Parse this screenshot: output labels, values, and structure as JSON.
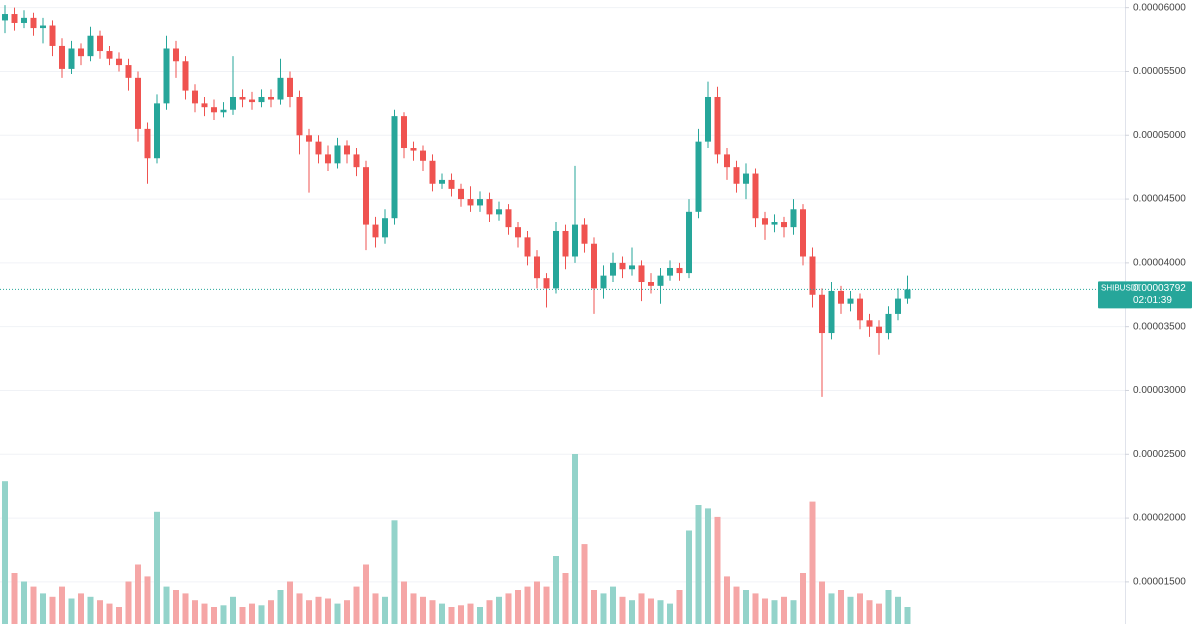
{
  "chart_data": {
    "type": "candlestick",
    "open": [
      5.9e-05,
      5.95e-05,
      5.88e-05,
      5.92e-05,
      5.84e-05,
      5.86e-05,
      5.7e-05,
      5.52e-05,
      5.68e-05,
      5.62e-05,
      5.78e-05,
      5.66e-05,
      5.6e-05,
      5.55e-05,
      5.45e-05,
      5.05e-05,
      4.82e-05,
      5.25e-05,
      5.68e-05,
      5.58e-05,
      5.35e-05,
      5.25e-05,
      5.22e-05,
      5.18e-05,
      5.2e-05,
      5.3e-05,
      5.28e-05,
      5.26e-05,
      5.3e-05,
      5.28e-05,
      5.45e-05,
      5.3e-05,
      5e-05,
      4.95e-05,
      4.85e-05,
      4.78e-05,
      4.92e-05,
      4.85e-05,
      4.75e-05,
      4.3e-05,
      4.2e-05,
      4.35e-05,
      5.15e-05,
      4.9e-05,
      4.88e-05,
      4.8e-05,
      4.62e-05,
      4.65e-05,
      4.58e-05,
      4.5e-05,
      4.45e-05,
      4.5e-05,
      4.38e-05,
      4.42e-05,
      4.28e-05,
      4.2e-05,
      4.05e-05,
      3.88e-05,
      3.8e-05,
      4.25e-05,
      4.05e-05,
      4.3e-05,
      4.15e-05,
      3.8e-05,
      3.9e-05,
      4e-05,
      3.95e-05,
      3.98e-05,
      3.85e-05,
      3.82e-05,
      3.9e-05,
      3.96e-05,
      3.92e-05,
      4.4e-05,
      4.95e-05,
      5.3e-05,
      4.85e-05,
      4.75e-05,
      4.62e-05,
      4.7e-05,
      4.35e-05,
      4.3e-05,
      4.32e-05,
      4.28e-05,
      4.42e-05,
      4.05e-05,
      3.75e-05,
      3.45e-05,
      3.78e-05,
      3.68e-05,
      3.72e-05,
      3.55e-05,
      3.5e-05,
      3.45e-05,
      3.6e-05,
      3.72e-05
    ],
    "high": [
      6.02e-05,
      6e-05,
      5.98e-05,
      5.96e-05,
      5.92e-05,
      5.9e-05,
      5.76e-05,
      5.74e-05,
      5.72e-05,
      5.85e-05,
      5.82e-05,
      5.7e-05,
      5.65e-05,
      5.6e-05,
      5.5e-05,
      5.1e-05,
      5.32e-05,
      5.78e-05,
      5.74e-05,
      5.62e-05,
      5.4e-05,
      5.3e-05,
      5.28e-05,
      5.26e-05,
      5.62e-05,
      5.36e-05,
      5.34e-05,
      5.36e-05,
      5.36e-05,
      5.6e-05,
      5.5e-05,
      5.35e-05,
      5.05e-05,
      5e-05,
      4.92e-05,
      4.98e-05,
      4.96e-05,
      4.9e-05,
      4.8e-05,
      4.36e-05,
      4.42e-05,
      5.2e-05,
      5.18e-05,
      4.95e-05,
      4.92e-05,
      4.85e-05,
      4.7e-05,
      4.7e-05,
      4.62e-05,
      4.6e-05,
      4.56e-05,
      4.55e-05,
      4.48e-05,
      4.46e-05,
      4.32e-05,
      4.25e-05,
      4.1e-05,
      3.92e-05,
      4.32e-05,
      4.3e-05,
      4.76e-05,
      4.35e-05,
      4.2e-05,
      3.98e-05,
      4.08e-05,
      4.05e-05,
      4.12e-05,
      4.02e-05,
      3.92e-05,
      3.96e-05,
      4.02e-05,
      4e-05,
      4.5e-05,
      5.05e-05,
      5.42e-05,
      5.38e-05,
      4.9e-05,
      4.8e-05,
      4.78e-05,
      4.74e-05,
      4.4e-05,
      4.38e-05,
      4.36e-05,
      4.5e-05,
      4.46e-05,
      4.12e-05,
      3.8e-05,
      3.85e-05,
      3.82e-05,
      3.78e-05,
      3.76e-05,
      3.6e-05,
      3.55e-05,
      3.66e-05,
      3.8e-05,
      3.9e-05
    ],
    "low": [
      5.8e-05,
      5.82e-05,
      5.84e-05,
      5.78e-05,
      5.72e-05,
      5.62e-05,
      5.45e-05,
      5.48e-05,
      5.55e-05,
      5.58e-05,
      5.6e-05,
      5.55e-05,
      5.5e-05,
      5.35e-05,
      4.95e-05,
      4.62e-05,
      4.78e-05,
      5.2e-05,
      5.45e-05,
      5.28e-05,
      5.18e-05,
      5.15e-05,
      5.12e-05,
      5.14e-05,
      5.16e-05,
      5.22e-05,
      5.2e-05,
      5.22e-05,
      5.22e-05,
      5.24e-05,
      5.22e-05,
      4.85e-05,
      4.55e-05,
      4.78e-05,
      4.72e-05,
      4.74e-05,
      4.78e-05,
      4.68e-05,
      4.1e-05,
      4.12e-05,
      4.15e-05,
      4.3e-05,
      4.82e-05,
      4.8e-05,
      4.72e-05,
      4.56e-05,
      4.58e-05,
      4.52e-05,
      4.44e-05,
      4.4e-05,
      4.4e-05,
      4.32e-05,
      4.33e-05,
      4.22e-05,
      4.12e-05,
      3.98e-05,
      3.8e-05,
      3.65e-05,
      3.76e-05,
      3.95e-05,
      4e-05,
      4.08e-05,
      3.6e-05,
      3.72e-05,
      3.85e-05,
      3.88e-05,
      3.9e-05,
      3.7e-05,
      3.76e-05,
      3.68e-05,
      3.86e-05,
      3.86e-05,
      3.88e-05,
      4.35e-05,
      4.9e-05,
      4.78e-05,
      4.65e-05,
      4.55e-05,
      4.5e-05,
      4.28e-05,
      4.18e-05,
      4.24e-05,
      4.2e-05,
      4.22e-05,
      3.98e-05,
      3.65e-05,
      2.95e-05,
      3.4e-05,
      3.6e-05,
      3.62e-05,
      3.48e-05,
      3.42e-05,
      3.28e-05,
      3.4e-05,
      3.55e-05,
      3.68e-05
    ],
    "close": [
      5.95e-05,
      5.88e-05,
      5.92e-05,
      5.84e-05,
      5.86e-05,
      5.7e-05,
      5.52e-05,
      5.68e-05,
      5.62e-05,
      5.78e-05,
      5.66e-05,
      5.6e-05,
      5.55e-05,
      5.45e-05,
      5.05e-05,
      4.82e-05,
      5.25e-05,
      5.68e-05,
      5.58e-05,
      5.35e-05,
      5.25e-05,
      5.22e-05,
      5.18e-05,
      5.2e-05,
      5.3e-05,
      5.28e-05,
      5.26e-05,
      5.3e-05,
      5.28e-05,
      5.45e-05,
      5.3e-05,
      5e-05,
      4.95e-05,
      4.85e-05,
      4.78e-05,
      4.92e-05,
      4.85e-05,
      4.75e-05,
      4.3e-05,
      4.2e-05,
      4.35e-05,
      5.15e-05,
      4.9e-05,
      4.88e-05,
      4.8e-05,
      4.62e-05,
      4.65e-05,
      4.58e-05,
      4.5e-05,
      4.45e-05,
      4.5e-05,
      4.38e-05,
      4.42e-05,
      4.28e-05,
      4.2e-05,
      4.05e-05,
      3.88e-05,
      3.8e-05,
      4.25e-05,
      4.05e-05,
      4.3e-05,
      4.15e-05,
      3.8e-05,
      3.9e-05,
      4e-05,
      3.95e-05,
      3.98e-05,
      3.85e-05,
      3.82e-05,
      3.9e-05,
      3.96e-05,
      3.92e-05,
      4.4e-05,
      4.95e-05,
      5.3e-05,
      4.85e-05,
      4.75e-05,
      4.62e-05,
      4.7e-05,
      4.35e-05,
      4.3e-05,
      4.32e-05,
      4.28e-05,
      4.42e-05,
      4.05e-05,
      3.75e-05,
      3.45e-05,
      3.78e-05,
      3.68e-05,
      3.72e-05,
      3.55e-05,
      3.5e-05,
      3.45e-05,
      3.6e-05,
      3.72e-05,
      3.792e-05
    ],
    "volume": [
      84,
      30,
      25,
      22,
      18,
      16,
      22,
      15,
      18,
      16,
      14,
      12,
      10,
      25,
      35,
      28,
      66,
      22,
      20,
      18,
      14,
      12,
      10,
      11,
      16,
      10,
      12,
      11,
      14,
      20,
      25,
      18,
      14,
      16,
      15,
      12,
      14,
      22,
      35,
      18,
      16,
      61,
      25,
      18,
      16,
      14,
      12,
      10,
      11,
      12,
      10,
      14,
      16,
      18,
      20,
      22,
      25,
      22,
      40,
      30,
      100,
      47,
      20,
      18,
      22,
      16,
      14,
      18,
      15,
      14,
      12,
      20,
      55,
      70,
      68,
      63,
      28,
      22,
      20,
      18,
      15,
      14,
      16,
      14,
      30,
      72,
      25,
      18,
      20,
      16,
      18,
      14,
      12,
      20,
      16,
      10
    ],
    "vlim": [
      0,
      100
    ],
    "up_color": "#26a69a",
    "down_color": "#ef5350",
    "up_volume_color": "#93d3ca",
    "down_volume_color": "#f5a6a6",
    "ylim": [
      1.17e-05,
      6.06e-05
    ],
    "yticks": [
      {
        "value": 6e-05,
        "label": "0.00006000"
      },
      {
        "value": 5.5e-05,
        "label": "0.00005500"
      },
      {
        "value": 5e-05,
        "label": "0.00005000"
      },
      {
        "value": 4.5e-05,
        "label": "0.00004500"
      },
      {
        "value": 4e-05,
        "label": "0.00004000"
      },
      {
        "value": 3.5e-05,
        "label": "0.00003500"
      },
      {
        "value": 3e-05,
        "label": "0.00003000"
      },
      {
        "value": 2.5e-05,
        "label": "0.00002500"
      },
      {
        "value": 2e-05,
        "label": "0.00002000"
      },
      {
        "value": 1.5e-05,
        "label": "0.00001500"
      }
    ],
    "grid": true,
    "last_price": {
      "symbol": "SHIBUSDT",
      "value": 3.792e-05,
      "label": "0.00003792",
      "countdown": "02:01:39"
    }
  }
}
